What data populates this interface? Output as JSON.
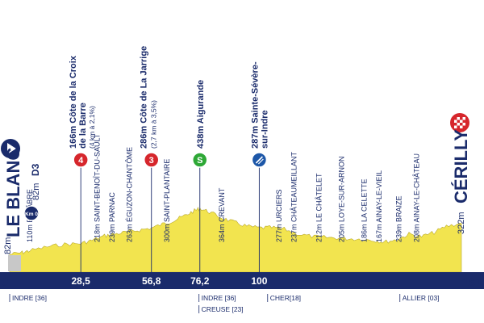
{
  "chart_data": {
    "type": "area",
    "title": "",
    "xlim": [
      0,
      181
    ],
    "x_ticks": [
      "0",
      "28,5",
      "56,8",
      "76,2",
      "100",
      "181"
    ],
    "x_tick_values": [
      0,
      28.5,
      56.8,
      76.2,
      100,
      181
    ],
    "start": {
      "name": "LE BLANC",
      "road": "D3",
      "alt": "82m",
      "km0_alt": "82m",
      "km0_badge": "Km 0"
    },
    "finish": {
      "name": "CÉRILLY",
      "alt": "322m"
    },
    "climbs": [
      {
        "line1": "Côte de la Croix",
        "line2": "de la Barre",
        "detail": "(4 km à 2,1%)",
        "alt": "166m",
        "category": "4",
        "km": 28.5,
        "color": "#d6262c"
      },
      {
        "line1": "Côte de La Jarrige",
        "line2": "",
        "detail": "(2,7 km à 3,5%)",
        "alt": "286m",
        "category": "3",
        "km": 56.8,
        "color": "#d6262c"
      }
    ],
    "sprint": {
      "name": "Aigurande",
      "alt": "438m",
      "symbol": "S",
      "km": 76.2,
      "color": "#2ea836"
    },
    "feed": {
      "line1": "Sainte-Sévère-",
      "line2": "sur-Indre",
      "alt": "287m",
      "km": 100,
      "color": "#1d57a8"
    },
    "waypoints": [
      {
        "label": "110m BÉLÂBRE",
        "km": 8
      },
      {
        "label": "218m SAINT-BENOÎT-DU-SAULT",
        "km": 35
      },
      {
        "label": "239m PARNAC",
        "km": 41
      },
      {
        "label": "263m ÉGUZON-CHANTÔME",
        "km": 48
      },
      {
        "label": "300m SAINT-PLANTAIRE",
        "km": 63
      },
      {
        "label": "364m CREVANT",
        "km": 85
      },
      {
        "label": "277m URCIERS",
        "km": 108
      },
      {
        "label": "237m CHÂTEAUMEILLANT",
        "km": 114
      },
      {
        "label": "212m LE CHÂTELET",
        "km": 124
      },
      {
        "label": "205m LOYE-SUR-ARNON",
        "km": 133
      },
      {
        "label": "186m LA CELETTE",
        "km": 142
      },
      {
        "label": "167m AINAY-LE-VIEIL",
        "km": 148
      },
      {
        "label": "239m BRAIZE",
        "km": 156
      },
      {
        "label": "208m AINAY-LE-CHÂTEAU",
        "km": 163
      }
    ],
    "departments": [
      {
        "label": "INDRE [36]",
        "km_start": 0,
        "row": 1
      },
      {
        "label": "CREUSE [23]",
        "km_start": 76.5,
        "row": 2
      },
      {
        "label": "INDRE [36]",
        "km_start": 76.5,
        "row": 1
      },
      {
        "label": "CHER[18]",
        "km_start": 104,
        "row": 1
      },
      {
        "label": "ALLIER [03]",
        "km_start": 157,
        "row": 1
      }
    ],
    "profile_alt": {
      "km": [
        0,
        5,
        8,
        15,
        22,
        28.5,
        33,
        38,
        42,
        47,
        52,
        56.8,
        62,
        66,
        70,
        74,
        76.2,
        80,
        85,
        90,
        95,
        100,
        105,
        110,
        116,
        122,
        128,
        134,
        140,
        146,
        150,
        155,
        160,
        165,
        170,
        175,
        181
      ],
      "alt": [
        82,
        95,
        110,
        140,
        160,
        166,
        190,
        225,
        239,
        255,
        270,
        286,
        320,
        345,
        380,
        420,
        438,
        410,
        364,
        330,
        300,
        287,
        290,
        277,
        237,
        218,
        212,
        205,
        200,
        190,
        178,
        195,
        239,
        220,
        250,
        300,
        322
      ]
    }
  },
  "colors": {
    "navy": "#1a2b6b",
    "profile": "#f2e44f",
    "profile_shade": "#d9c63a",
    "bar": "#1a2b6b"
  }
}
